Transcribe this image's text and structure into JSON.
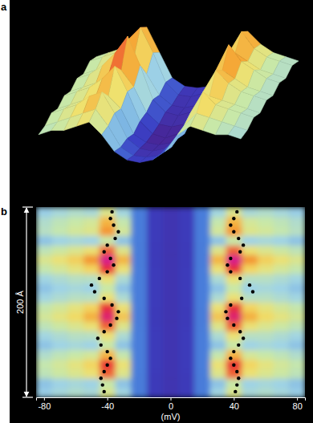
{
  "chart_data": [
    {
      "type": "surface",
      "label": "a",
      "zlim": [
        0,
        1
      ],
      "tick_labels": false,
      "z": [
        [
          0.45,
          0.5,
          0.55,
          0.7,
          0.8,
          0.5,
          0.2,
          0.1,
          0.08,
          0.1,
          0.2,
          0.5,
          0.75,
          0.6,
          0.5,
          0.45,
          0.4
        ],
        [
          0.5,
          0.55,
          0.6,
          0.75,
          0.9,
          0.6,
          0.25,
          0.1,
          0.08,
          0.12,
          0.25,
          0.6,
          0.85,
          0.65,
          0.55,
          0.5,
          0.45
        ],
        [
          0.45,
          0.5,
          0.55,
          0.6,
          0.65,
          0.45,
          0.2,
          0.08,
          0.05,
          0.08,
          0.2,
          0.45,
          0.7,
          0.6,
          0.5,
          0.45,
          0.4
        ],
        [
          0.5,
          0.55,
          0.65,
          0.8,
          1.0,
          0.65,
          0.25,
          0.1,
          0.06,
          0.1,
          0.25,
          0.6,
          0.9,
          0.7,
          0.6,
          0.5,
          0.45
        ],
        [
          0.45,
          0.5,
          0.55,
          0.65,
          0.7,
          0.5,
          0.2,
          0.06,
          0.03,
          0.06,
          0.2,
          0.5,
          0.7,
          0.6,
          0.5,
          0.45,
          0.4
        ],
        [
          0.5,
          0.55,
          0.6,
          0.7,
          0.85,
          0.55,
          0.2,
          0.05,
          0.0,
          0.05,
          0.2,
          0.55,
          0.8,
          0.65,
          0.55,
          0.5,
          0.45
        ],
        [
          0.45,
          0.5,
          0.55,
          0.6,
          0.6,
          0.45,
          0.15,
          0.05,
          0.02,
          0.05,
          0.15,
          0.45,
          0.6,
          0.55,
          0.5,
          0.45,
          0.4
        ],
        [
          0.5,
          0.55,
          0.6,
          0.7,
          0.75,
          0.5,
          0.2,
          0.08,
          0.05,
          0.08,
          0.2,
          0.5,
          0.75,
          0.6,
          0.55,
          0.5,
          0.45
        ],
        [
          0.45,
          0.5,
          0.55,
          0.6,
          0.65,
          0.45,
          0.2,
          0.1,
          0.08,
          0.1,
          0.2,
          0.45,
          0.6,
          0.55,
          0.5,
          0.45,
          0.4
        ],
        [
          0.45,
          0.5,
          0.5,
          0.55,
          0.6,
          0.45,
          0.25,
          0.15,
          0.12,
          0.15,
          0.25,
          0.45,
          0.55,
          0.5,
          0.45,
          0.45,
          0.4
        ]
      ]
    },
    {
      "type": "heatmap",
      "label": "b",
      "xlabel": "(mV)",
      "xlim": [
        -85,
        85
      ],
      "xticks": [
        -80,
        -40,
        0,
        40,
        80
      ],
      "ylim": [
        0,
        200
      ],
      "tick_labels": "x",
      "scale_bar": {
        "length": 200,
        "label": "200 Å"
      },
      "zlim": [
        0,
        1
      ],
      "x": [
        -80,
        -70,
        -60,
        -50,
        -40,
        -30,
        -20,
        -10,
        0,
        10,
        20,
        30,
        40,
        50,
        60,
        70,
        80
      ],
      "y": [
        5,
        15,
        25,
        35,
        45,
        55,
        65,
        75,
        85,
        95,
        105,
        115,
        125,
        135,
        145,
        155,
        165,
        175,
        185,
        195
      ],
      "z": [
        [
          0.37,
          0.4,
          0.43,
          0.41,
          0.55,
          0.39,
          0.22,
          0.1,
          0.08,
          0.1,
          0.22,
          0.39,
          0.55,
          0.41,
          0.43,
          0.4,
          0.37
        ],
        [
          0.35,
          0.38,
          0.4,
          0.38,
          0.5,
          0.35,
          0.22,
          0.1,
          0.08,
          0.1,
          0.22,
          0.35,
          0.5,
          0.38,
          0.4,
          0.38,
          0.35
        ],
        [
          0.47,
          0.51,
          0.55,
          0.6,
          0.8,
          0.56,
          0.22,
          0.1,
          0.08,
          0.1,
          0.22,
          0.56,
          0.8,
          0.6,
          0.55,
          0.51,
          0.47
        ],
        [
          0.49,
          0.53,
          0.58,
          0.64,
          0.85,
          0.6,
          0.22,
          0.1,
          0.08,
          0.1,
          0.22,
          0.6,
          0.85,
          0.64,
          0.58,
          0.53,
          0.49
        ],
        [
          0.43,
          0.47,
          0.5,
          0.53,
          0.7,
          0.49,
          0.22,
          0.1,
          0.08,
          0.1,
          0.22,
          0.49,
          0.7,
          0.53,
          0.5,
          0.47,
          0.43
        ],
        [
          0.35,
          0.38,
          0.4,
          0.38,
          0.5,
          0.35,
          0.22,
          0.1,
          0.08,
          0.1,
          0.22,
          0.35,
          0.5,
          0.38,
          0.4,
          0.38,
          0.35
        ],
        [
          0.39,
          0.42,
          0.45,
          0.45,
          0.6,
          0.42,
          0.22,
          0.1,
          0.08,
          0.1,
          0.22,
          0.42,
          0.6,
          0.45,
          0.45,
          0.42,
          0.39
        ],
        [
          0.47,
          0.51,
          0.55,
          0.6,
          0.8,
          0.56,
          0.22,
          0.1,
          0.08,
          0.1,
          0.22,
          0.56,
          0.8,
          0.6,
          0.55,
          0.51,
          0.47
        ],
        [
          0.53,
          0.58,
          0.63,
          0.71,
          0.95,
          0.67,
          0.22,
          0.1,
          0.08,
          0.1,
          0.22,
          0.67,
          0.95,
          0.71,
          0.63,
          0.58,
          0.53
        ],
        [
          0.49,
          0.53,
          0.58,
          0.64,
          0.85,
          0.6,
          0.22,
          0.1,
          0.08,
          0.1,
          0.22,
          0.6,
          0.85,
          0.64,
          0.58,
          0.53,
          0.49
        ],
        [
          0.39,
          0.42,
          0.45,
          0.45,
          0.6,
          0.42,
          0.22,
          0.1,
          0.08,
          0.1,
          0.22,
          0.42,
          0.6,
          0.45,
          0.45,
          0.42,
          0.39
        ],
        [
          0.35,
          0.38,
          0.4,
          0.38,
          0.5,
          0.35,
          0.22,
          0.1,
          0.08,
          0.1,
          0.22,
          0.35,
          0.5,
          0.38,
          0.4,
          0.38,
          0.35
        ],
        [
          0.39,
          0.42,
          0.45,
          0.45,
          0.6,
          0.42,
          0.22,
          0.1,
          0.08,
          0.1,
          0.22,
          0.42,
          0.6,
          0.45,
          0.45,
          0.42,
          0.39
        ],
        [
          0.49,
          0.53,
          0.58,
          0.64,
          0.85,
          0.6,
          0.22,
          0.1,
          0.08,
          0.1,
          0.22,
          0.6,
          0.85,
          0.64,
          0.58,
          0.53,
          0.49
        ],
        [
          0.55,
          0.6,
          0.65,
          0.75,
          1.0,
          0.7,
          0.22,
          0.1,
          0.08,
          0.1,
          0.22,
          0.7,
          1.0,
          0.75,
          0.65,
          0.6,
          0.55
        ],
        [
          0.47,
          0.51,
          0.55,
          0.6,
          0.8,
          0.56,
          0.22,
          0.1,
          0.08,
          0.1,
          0.22,
          0.56,
          0.8,
          0.6,
          0.55,
          0.51,
          0.47
        ],
        [
          0.35,
          0.38,
          0.4,
          0.38,
          0.5,
          0.35,
          0.22,
          0.1,
          0.08,
          0.1,
          0.22,
          0.35,
          0.5,
          0.38,
          0.4,
          0.38,
          0.35
        ],
        [
          0.45,
          0.49,
          0.53,
          0.56,
          0.75,
          0.53,
          0.22,
          0.1,
          0.08,
          0.1,
          0.22,
          0.53,
          0.75,
          0.56,
          0.53,
          0.49,
          0.45
        ],
        [
          0.43,
          0.47,
          0.5,
          0.53,
          0.7,
          0.49,
          0.22,
          0.1,
          0.08,
          0.1,
          0.22,
          0.49,
          0.7,
          0.53,
          0.5,
          0.47,
          0.43
        ],
        [
          0.37,
          0.4,
          0.43,
          0.41,
          0.55,
          0.39,
          0.22,
          0.1,
          0.08,
          0.1,
          0.22,
          0.39,
          0.55,
          0.41,
          0.43,
          0.4,
          0.37
        ]
      ],
      "series": [
        {
          "color": "#000000",
          "marker": "circle",
          "x": [
            -42,
            -43,
            -44,
            -42,
            -40,
            -38,
            -40,
            -44,
            -46,
            -42,
            -38,
            -34,
            -33,
            -37,
            -42,
            -48,
            -50,
            -45,
            -40,
            -36,
            -38,
            -42,
            -40,
            -35,
            -33,
            -36,
            -38,
            -37
          ],
          "y": [
            6,
            13,
            20,
            27,
            34,
            41,
            48,
            55,
            62,
            69,
            76,
            83,
            90,
            97,
            104,
            111,
            118,
            125,
            132,
            139,
            146,
            153,
            160,
            167,
            174,
            181,
            188,
            195
          ]
        },
        {
          "color": "#000000",
          "marker": "circle",
          "x": [
            41,
            42,
            43,
            42,
            40,
            38,
            40,
            43,
            46,
            44,
            40,
            36,
            35,
            38,
            45,
            52,
            50,
            44,
            38,
            36,
            38,
            44,
            46,
            43,
            40,
            38,
            40,
            42
          ],
          "y": [
            6,
            13,
            20,
            27,
            34,
            41,
            48,
            55,
            62,
            69,
            76,
            83,
            90,
            97,
            104,
            111,
            118,
            125,
            132,
            139,
            146,
            153,
            160,
            167,
            174,
            181,
            188,
            195
          ]
        }
      ]
    }
  ]
}
